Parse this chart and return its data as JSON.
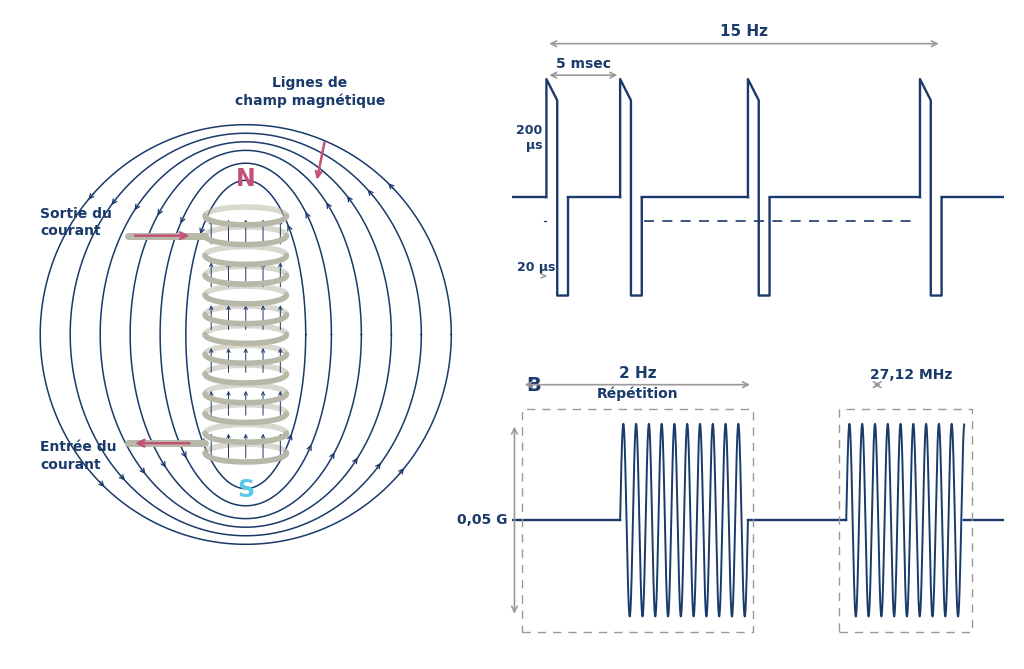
{
  "bg_color": "#ffffff",
  "line_color": "#1a3a6b",
  "pink_color": "#c2527a",
  "cyan_color": "#5bc8e8",
  "gray_color": "#999999",
  "coil_color": "#b8b8a8",
  "title_color": "#1a3a6b",
  "label_N": "N",
  "label_S": "S",
  "label_lignes": "Lignes de\nchamp magnétique",
  "label_sortie": "Sortie du\ncourant",
  "label_entree": "Entrée du\ncourant",
  "label_B": "B",
  "label_15hz": "15 Hz",
  "label_5msec": "5 msec",
  "label_200us": "200\nμs",
  "label_20us": "20 μs",
  "label_2hz": "2 Hz",
  "label_repetition": "Répétition",
  "label_2712mhz": "27,12 MHz",
  "label_005g": "0,05 G"
}
